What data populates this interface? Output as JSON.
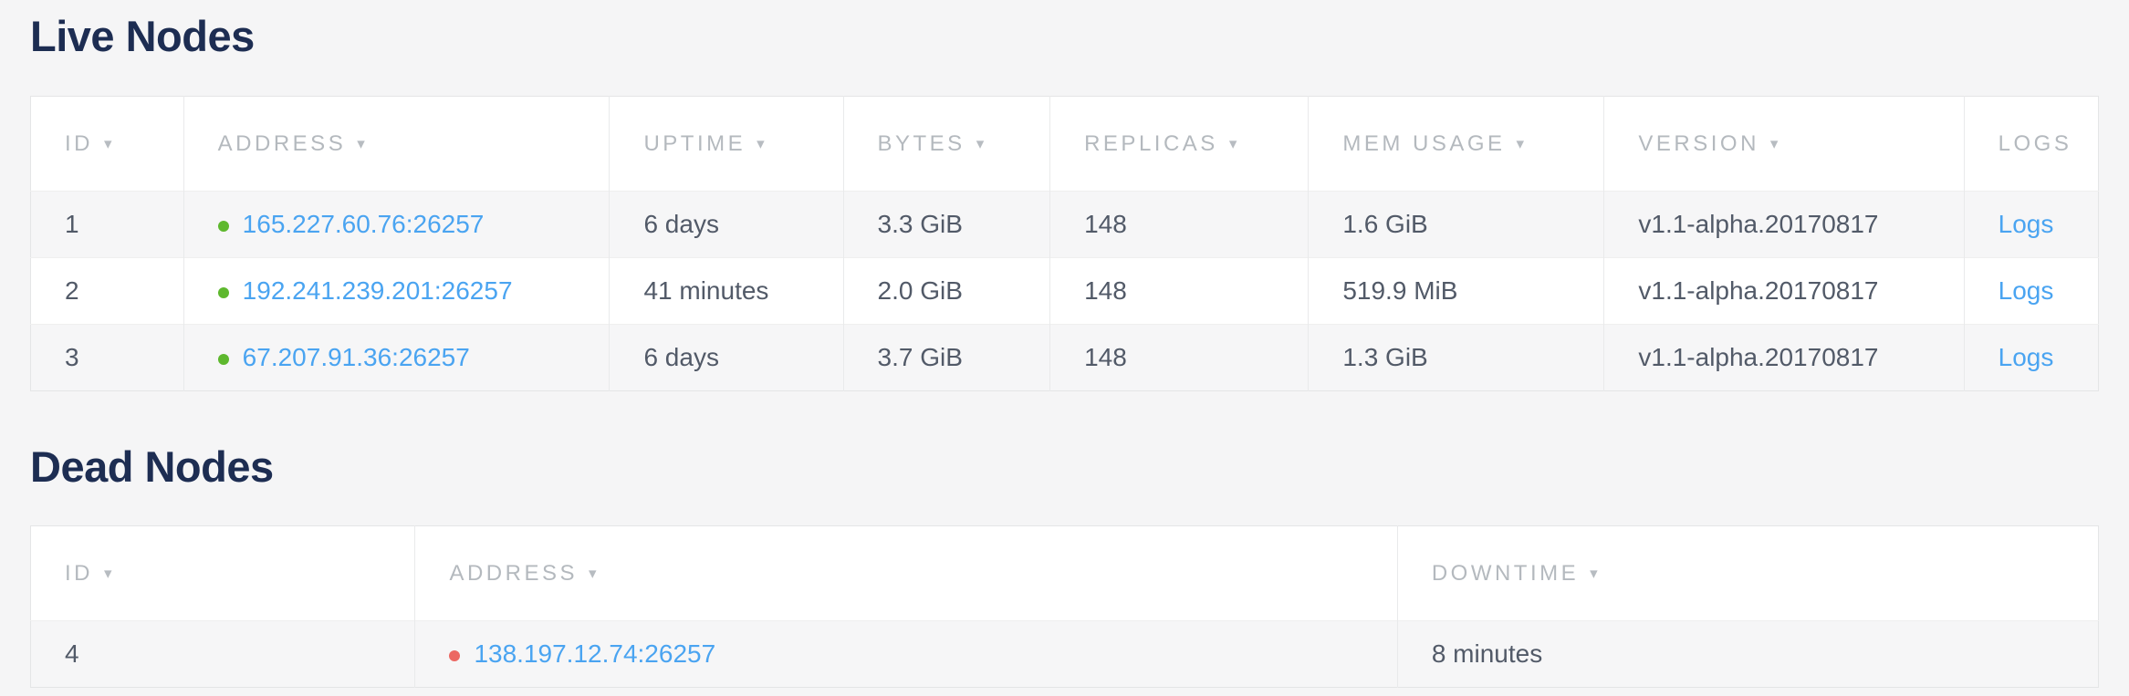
{
  "icons": {
    "sort_arrow": "▾"
  },
  "colors": {
    "title": "#1d2d52",
    "link": "#4aa4f1",
    "live_dot": "#5eb82e",
    "dead_dot": "#ec6863",
    "header_text": "#b4b9be",
    "cell_text": "#525a68",
    "page_background": "#f5f5f6",
    "row_stripe": "#f6f6f7"
  },
  "live_nodes": {
    "title": "Live Nodes",
    "columns": [
      {
        "label": "ID",
        "sortable": true
      },
      {
        "label": "ADDRESS",
        "sortable": true
      },
      {
        "label": "UPTIME",
        "sortable": true
      },
      {
        "label": "BYTES",
        "sortable": true
      },
      {
        "label": "REPLICAS",
        "sortable": true
      },
      {
        "label": "MEM USAGE",
        "sortable": true
      },
      {
        "label": "VERSION",
        "sortable": true
      },
      {
        "label": "LOGS",
        "sortable": false
      }
    ],
    "rows": [
      {
        "id": "1",
        "status": "live",
        "address": "165.227.60.76:26257",
        "uptime": "6 days",
        "bytes": "3.3 GiB",
        "replicas": "148",
        "mem_usage": "1.6 GiB",
        "version": "v1.1-alpha.20170817",
        "logs_label": "Logs"
      },
      {
        "id": "2",
        "status": "live",
        "address": "192.241.239.201:26257",
        "uptime": "41 minutes",
        "bytes": "2.0 GiB",
        "replicas": "148",
        "mem_usage": "519.9 MiB",
        "version": "v1.1-alpha.20170817",
        "logs_label": "Logs"
      },
      {
        "id": "3",
        "status": "live",
        "address": "67.207.91.36:26257",
        "uptime": "6 days",
        "bytes": "3.7 GiB",
        "replicas": "148",
        "mem_usage": "1.3 GiB",
        "version": "v1.1-alpha.20170817",
        "logs_label": "Logs"
      }
    ]
  },
  "dead_nodes": {
    "title": "Dead Nodes",
    "columns": [
      {
        "label": "ID",
        "sortable": true
      },
      {
        "label": "ADDRESS",
        "sortable": true
      },
      {
        "label": "DOWNTIME",
        "sortable": true
      }
    ],
    "rows": [
      {
        "id": "4",
        "status": "dead",
        "address": "138.197.12.74:26257",
        "downtime": "8 minutes"
      }
    ]
  }
}
